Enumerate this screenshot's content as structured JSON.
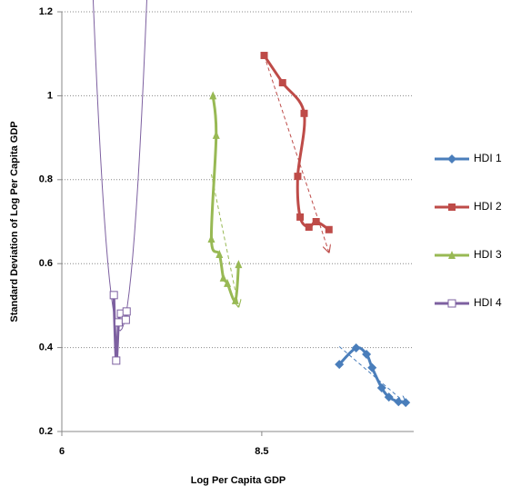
{
  "chart_data": {
    "type": "scatter",
    "xlabel": "Log Per Capita GDP",
    "ylabel": "Standard Deviation of Log Per Capita GDP",
    "xlim": [
      6,
      10.4
    ],
    "xticks": [
      6,
      8.5
    ],
    "ylim": [
      0.2,
      1.2
    ],
    "yticks": [
      0.2,
      0.4,
      0.6,
      0.8,
      1,
      1.2
    ],
    "grid": true,
    "legend": "right",
    "series": [
      {
        "name": "HDI 1",
        "color": "#4a7ebb",
        "marker": "diamond",
        "trendline": "linear",
        "x": [
          9.47,
          9.68,
          9.81,
          9.88,
          10.0,
          10.09,
          10.21,
          10.3
        ],
        "values": [
          0.36,
          0.399,
          0.384,
          0.352,
          0.304,
          0.282,
          0.271,
          0.269
        ]
      },
      {
        "name": "HDI 2",
        "color": "#be4b48",
        "marker": "square",
        "trendline": "linear",
        "x": [
          8.53,
          8.76,
          9.03,
          8.95,
          8.98,
          9.09,
          9.18,
          9.34
        ],
        "values": [
          1.096,
          1.031,
          0.958,
          0.808,
          0.711,
          0.687,
          0.7,
          0.681
        ]
      },
      {
        "name": "HDI 3",
        "color": "#98b954",
        "marker": "triangle",
        "trendline": "linear",
        "x": [
          7.89,
          7.93,
          7.87,
          7.97,
          8.02,
          8.07,
          8.17,
          8.21
        ],
        "values": [
          1.0,
          0.906,
          0.659,
          0.622,
          0.566,
          0.553,
          0.512,
          0.598
        ]
      },
      {
        "name": "HDI 4",
        "color": "#7d60a0",
        "marker": "open-square",
        "trendline": "polynomial",
        "x": [
          6.65,
          6.68,
          6.71,
          6.74,
          6.8,
          6.81
        ],
        "values": [
          0.525,
          0.369,
          0.46,
          0.481,
          0.466,
          0.486
        ]
      }
    ]
  }
}
